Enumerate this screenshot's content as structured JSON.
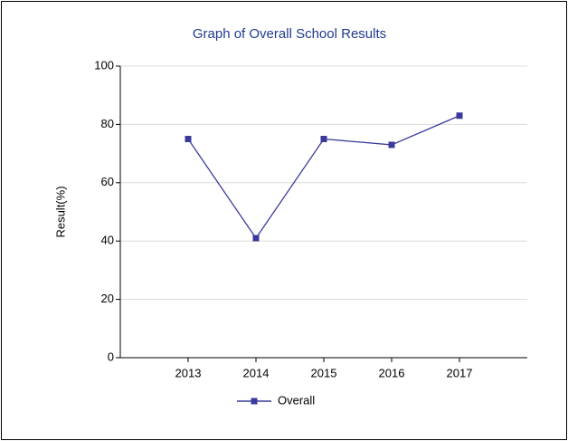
{
  "chart_data": {
    "type": "line",
    "title": "Graph of Overall School Results",
    "ylabel": "Result(%)",
    "categories": [
      "2013",
      "2014",
      "2015",
      "2016",
      "2017"
    ],
    "series": [
      {
        "name": "Overall",
        "color": "#3a3a9c",
        "values": [
          75,
          41,
          75,
          73,
          83
        ]
      }
    ],
    "ylim": [
      0,
      100
    ],
    "yticks": [
      0,
      20,
      40,
      60,
      80,
      100
    ],
    "grid": true,
    "legend": "bottom"
  }
}
